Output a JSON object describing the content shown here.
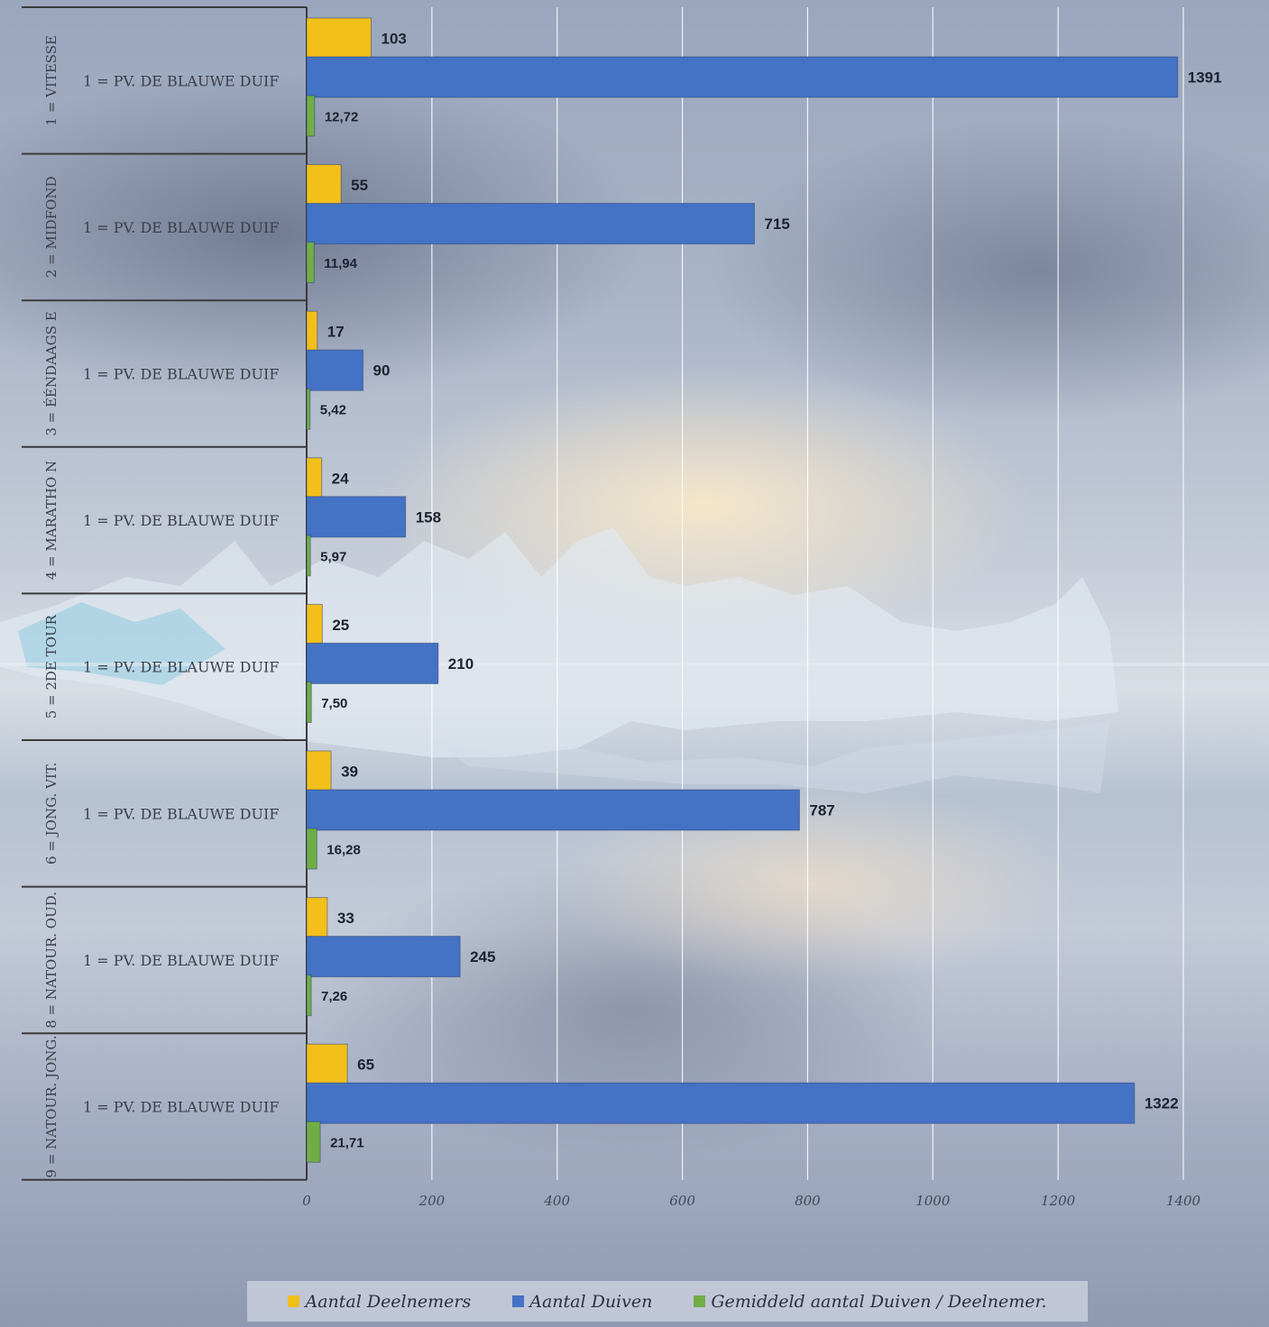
{
  "chart_data": {
    "type": "bar",
    "orientation": "horizontal",
    "groups": [
      {
        "group": "1 = VITESSE",
        "category": "1 = PV. DE BLAUWE DUIF",
        "values": [
          103,
          1391,
          12.72
        ],
        "labels": [
          "103",
          "1391",
          "12,72"
        ]
      },
      {
        "group": "2 = MIDFOND",
        "category": "1 = PV. DE BLAUWE DUIF",
        "values": [
          55,
          715,
          11.94
        ],
        "labels": [
          "55",
          "715",
          "11,94"
        ]
      },
      {
        "group": "3 = ÉÉNDAAGS E",
        "category": "1 = PV. DE BLAUWE DUIF",
        "values": [
          17,
          90,
          5.42
        ],
        "labels": [
          "17",
          "90",
          "5,42"
        ]
      },
      {
        "group": "4 = MARATHO N",
        "category": "1 = PV. DE BLAUWE DUIF",
        "values": [
          24,
          158,
          5.97
        ],
        "labels": [
          "24",
          "158",
          "5,97"
        ]
      },
      {
        "group": "5 = 2DE TOUR",
        "category": "1 = PV. DE BLAUWE DUIF",
        "values": [
          25,
          210,
          7.5
        ],
        "labels": [
          "25",
          "210",
          "7,50"
        ]
      },
      {
        "group": "6 = JONG. VIT.",
        "category": "1 = PV. DE BLAUWE DUIF",
        "values": [
          39,
          787,
          16.28
        ],
        "labels": [
          "39",
          "787",
          "16,28"
        ]
      },
      {
        "group": "8 = NATOUR. OUD.",
        "category": "1 = PV. DE BLAUWE DUIF",
        "values": [
          33,
          245,
          7.26
        ],
        "labels": [
          "33",
          "245",
          "7,26"
        ]
      },
      {
        "group": "9 = NATOUR. JONG.",
        "category": "1 = PV. DE BLAUWE DUIF",
        "values": [
          65,
          1322,
          21.71
        ],
        "labels": [
          "65",
          "1322",
          "21,71"
        ]
      }
    ],
    "series": [
      {
        "name": "Aantal Deelnemers",
        "color": "#f2bf1b"
      },
      {
        "name": "Aantal Duiven",
        "color": "#4472c4"
      },
      {
        "name": "Gemiddeld aantal Duiven / Deelnemer.",
        "color": "#70ad47"
      }
    ],
    "xlim": [
      0,
      1400
    ],
    "xticks": [
      0,
      200,
      400,
      600,
      800,
      1000,
      1200,
      1400
    ],
    "xtick_labels": [
      "0",
      "200",
      "400",
      "600",
      "800",
      "1000",
      "1200",
      "1400"
    ],
    "grid": true,
    "legend_position": "bottom"
  },
  "legend": {
    "items": [
      {
        "label": "Aantal Deelnemers",
        "color": "#f2bf1b"
      },
      {
        "label": "Aantal Duiven",
        "color": "#4472c4"
      },
      {
        "label": "Gemiddeld aantal Duiven / Deelnemer.",
        "color": "#70ad47"
      }
    ]
  }
}
